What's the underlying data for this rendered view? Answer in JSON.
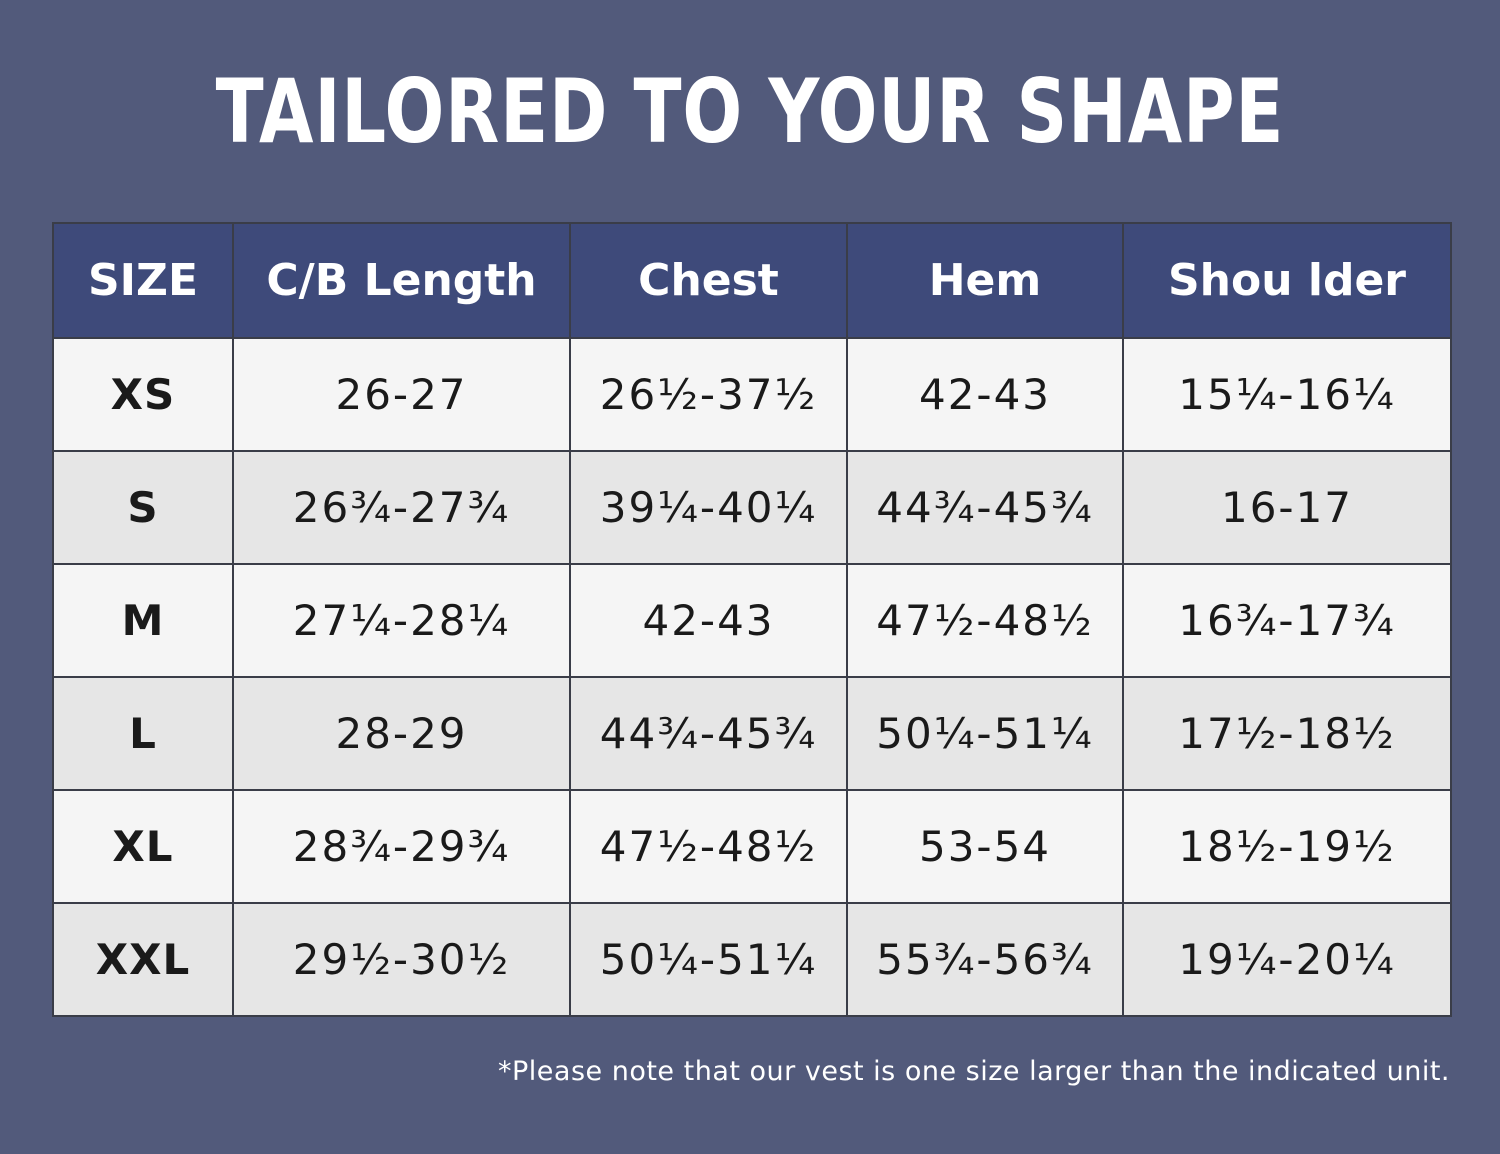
{
  "title": "TAILORED TO YOUR SHAPE",
  "note": "*Please note that our vest is one size larger than the indicated unit.",
  "colors": {
    "background": "#525a7b",
    "header": "#3e4a7a",
    "row_light": "#f5f5f5",
    "row_dark": "#e6e6e6"
  },
  "chart_data": {
    "type": "table",
    "title": "TAILORED TO YOUR SHAPE",
    "columns": [
      "SIZE",
      "C/B Length",
      "Chest",
      "Hem",
      "Shou lder"
    ],
    "rows": [
      [
        "XS",
        "26-27",
        "26½-37½",
        "42-43",
        "15¼-16¼"
      ],
      [
        "S",
        "26¾-27¾",
        "39¼-40¼",
        "44¾-45¾",
        "16-17"
      ],
      [
        "M",
        "27¼-28¼",
        "42-43",
        "47½-48½",
        "16¾-17¾"
      ],
      [
        "L",
        "28-29",
        "44¾-45¾",
        "50¼-51¼",
        "17½-18½"
      ],
      [
        "XL",
        "28¾-29¾",
        "47½-48½",
        "53-54",
        "18½-19½"
      ],
      [
        "XXL",
        "29½-30½",
        "50¼-51¼",
        "55¾-56¾",
        "19¼-20¼"
      ]
    ]
  }
}
